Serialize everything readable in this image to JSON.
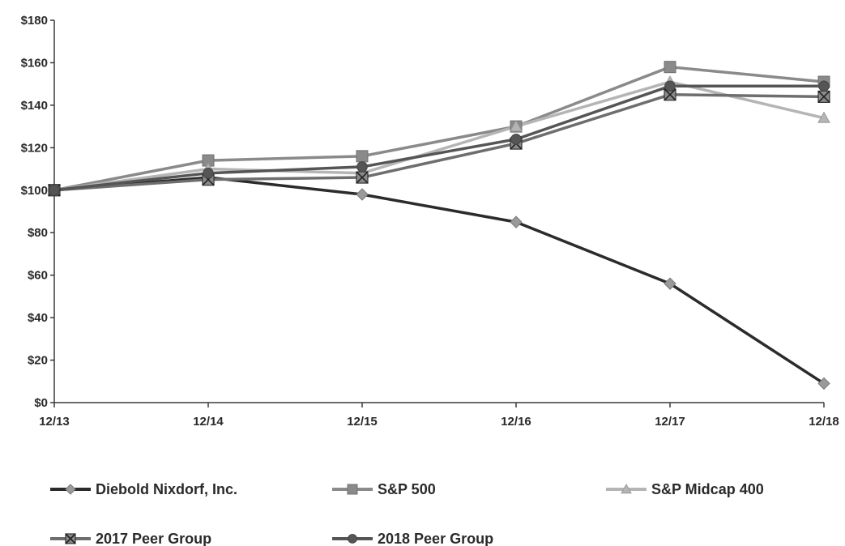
{
  "chart_data": {
    "type": "line",
    "title": "",
    "xlabel": "",
    "ylabel": "",
    "categories": [
      "12/13",
      "12/14",
      "12/15",
      "12/16",
      "12/17",
      "12/18"
    ],
    "ylim": [
      0,
      180
    ],
    "yticks": [
      0,
      20,
      40,
      60,
      80,
      100,
      120,
      140,
      160,
      180
    ],
    "ytick_labels": [
      "$0",
      "$20",
      "$40",
      "$60",
      "$80",
      "$100",
      "$120",
      "$140",
      "$160",
      "$180"
    ],
    "grid": false,
    "legend_position": "bottom",
    "series": [
      {
        "name": "Diebold Nixdorf, Inc.",
        "values": [
          100,
          106,
          98,
          85,
          56,
          9
        ],
        "color": "#2b2b2b",
        "marker": "diamond"
      },
      {
        "name": "S&P 500",
        "values": [
          100,
          114,
          116,
          130,
          158,
          151
        ],
        "color": "#8a8a8a",
        "marker": "square"
      },
      {
        "name": "S&P Midcap 400",
        "values": [
          100,
          110,
          108,
          130,
          151,
          134
        ],
        "color": "#b5b5b5",
        "marker": "triangle"
      },
      {
        "name": "2017 Peer Group",
        "values": [
          100,
          105,
          106,
          122,
          145,
          144
        ],
        "color": "#6e6e6e",
        "marker": "x-square"
      },
      {
        "name": "2018 Peer Group",
        "values": [
          100,
          108,
          111,
          124,
          149,
          149
        ],
        "color": "#555555",
        "marker": "circle"
      }
    ]
  }
}
